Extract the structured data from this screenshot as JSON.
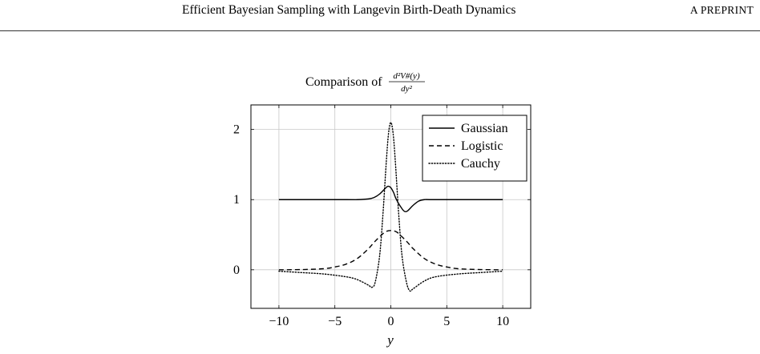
{
  "header": {
    "title": "Efficient Bayesian Sampling with Langevin Birth-Death Dynamics",
    "tag": "A PREPRINT"
  },
  "chart_data": {
    "type": "line",
    "title": "Comparison of d²V#(y)/dy²",
    "title_prefix": "Comparison of",
    "title_numerator": "d²V#(y)",
    "title_denominator": "dy²",
    "xlabel": "y",
    "ylabel": "",
    "xlim": [
      -12.5,
      12.5
    ],
    "ylim": [
      -0.55,
      2.35
    ],
    "xticks": [
      -10,
      -5,
      0,
      5,
      10
    ],
    "xtick_labels": [
      "−10",
      "−5",
      "0",
      "5",
      "10"
    ],
    "yticks": [
      0,
      1,
      2
    ],
    "ytick_labels": [
      "0",
      "1",
      "2"
    ],
    "grid": true,
    "legend_position": "top-right",
    "series": [
      {
        "name": "Gaussian",
        "style": "solid",
        "x": [
          -10,
          -4,
          -3,
          -2,
          -1.5,
          -1,
          -0.5,
          -0.25,
          0,
          0.25,
          0.5,
          1,
          1.25,
          1.5,
          2,
          2.5,
          3,
          4,
          10
        ],
        "y": [
          1.0,
          1.0,
          1.0,
          1.01,
          1.03,
          1.08,
          1.16,
          1.19,
          1.17,
          1.1,
          1.0,
          0.87,
          0.83,
          0.84,
          0.92,
          0.98,
          1.0,
          1.0,
          1.0
        ]
      },
      {
        "name": "Logistic",
        "style": "dashed",
        "x": [
          -10,
          -8,
          -6,
          -5,
          -4,
          -3,
          -2,
          -1.5,
          -1,
          -0.5,
          0,
          0.5,
          1,
          1.5,
          2,
          3,
          4,
          5,
          6,
          8,
          10
        ],
        "y": [
          0.0,
          0.003,
          0.015,
          0.04,
          0.08,
          0.16,
          0.3,
          0.39,
          0.47,
          0.54,
          0.56,
          0.54,
          0.47,
          0.39,
          0.3,
          0.16,
          0.08,
          0.04,
          0.015,
          0.003,
          0.0
        ]
      },
      {
        "name": "Cauchy",
        "style": "dotted",
        "x": [
          -10,
          -8,
          -6,
          -4,
          -3,
          -2,
          -1.7,
          -1.4,
          -1,
          -0.7,
          -0.4,
          -0.2,
          0,
          0.2,
          0.4,
          0.7,
          1,
          1.4,
          1.7,
          2,
          3,
          4,
          6,
          8,
          10
        ],
        "y": [
          -0.02,
          -0.04,
          -0.06,
          -0.1,
          -0.14,
          -0.22,
          -0.25,
          -0.18,
          0.2,
          0.8,
          1.55,
          1.95,
          2.1,
          1.95,
          1.55,
          0.8,
          0.2,
          -0.18,
          -0.3,
          -0.27,
          -0.16,
          -0.1,
          -0.06,
          -0.04,
          -0.02
        ]
      }
    ]
  }
}
